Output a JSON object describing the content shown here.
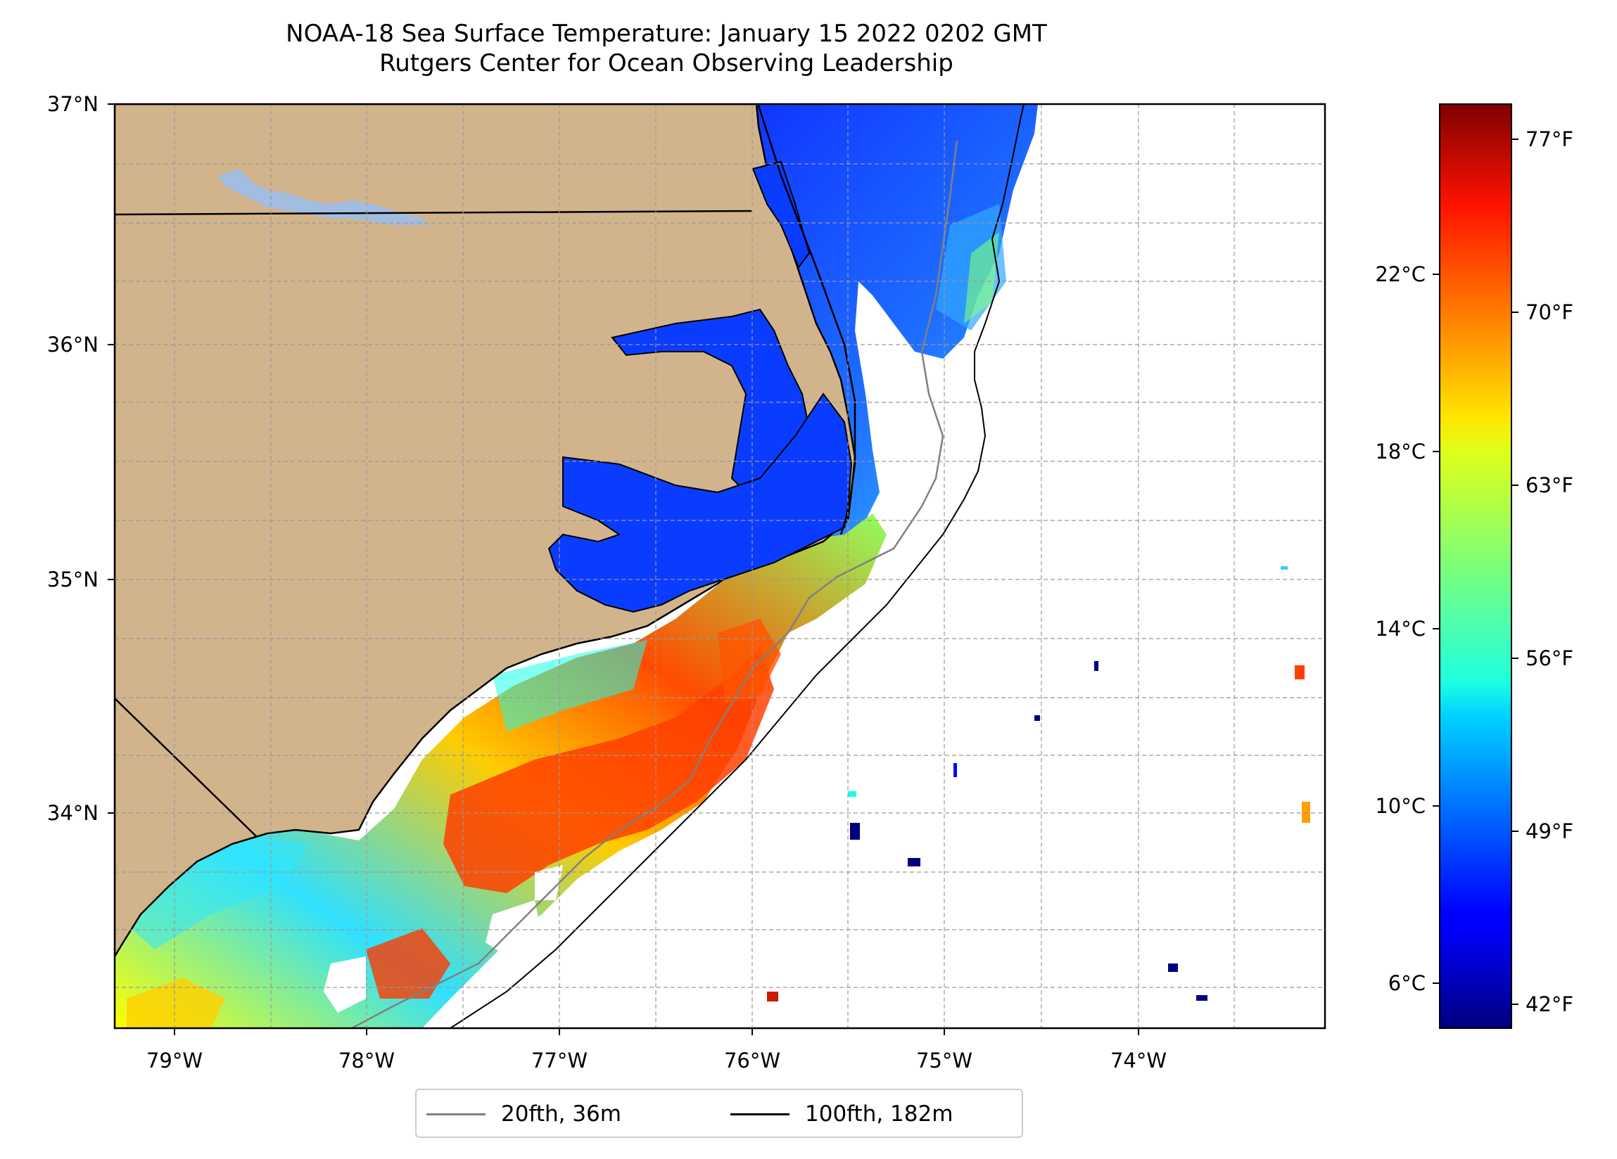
{
  "title": {
    "line1": "NOAA-18 Sea Surface Temperature: January 15 2022 0202 GMT",
    "line2": "Rutgers Center for Ocean Observing Leadership"
  },
  "map": {
    "lat_labels": [
      "37°N",
      "36°N",
      "35°N",
      "34°N"
    ],
    "lon_labels": [
      "79°W",
      "78°W",
      "77°W",
      "76°W",
      "75°W",
      "74°W"
    ],
    "lat_range": [
      33.1,
      37.0
    ],
    "lon_range": [
      -79.3,
      -73.05
    ],
    "colors": {
      "land": "#d2b48c",
      "reservoir": "#a3bde0",
      "coast": "#000000",
      "no_data": "#ffffff"
    }
  },
  "colorbar": {
    "celsius_labels": [
      "22°C",
      "18°C",
      "14°C",
      "10°C",
      "6°C"
    ],
    "fahrenheit_labels": [
      "77°F",
      "70°F",
      "63°F",
      "56°F",
      "49°F",
      "42°F"
    ],
    "colormap": "jet",
    "range_c": [
      5.0,
      26.0
    ]
  },
  "legend": {
    "items": [
      {
        "label": "20fth, 36m",
        "color": "#808080"
      },
      {
        "label": "100fth, 182m",
        "color": "#000000"
      }
    ]
  }
}
